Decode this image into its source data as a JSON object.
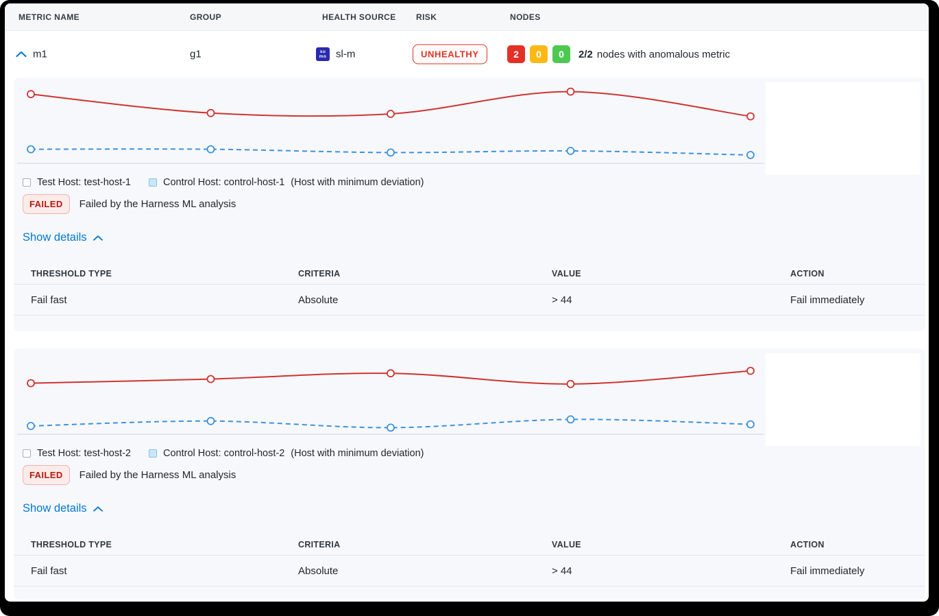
{
  "colors": {
    "accent_blue": "#0278d5",
    "risk_red": "#e13023",
    "node_red": "#e33127",
    "node_yellow": "#fcb915",
    "node_green": "#4dc952",
    "test_line_red": "#ce3430",
    "control_line_blue": "#3d91dc",
    "card_background": "#f7f8fc"
  },
  "header": {
    "columns": [
      "METRIC NAME",
      "GROUP",
      "HEALTH SOURCE",
      "RISK",
      "NODES"
    ]
  },
  "metric_row": {
    "metric_name": "m1",
    "group": "g1",
    "health_source": {
      "icon_text_top": "su",
      "icon_text_bottom": "mo",
      "label": "sl-m"
    },
    "risk_label": "UNHEALTHY",
    "nodes": {
      "unhealthy_count": "2",
      "warning_count": "0",
      "healthy_count": "0",
      "ratio": "2/2",
      "description": "nodes with anomalous metric"
    }
  },
  "sections": [
    {
      "legend": {
        "test": "Test Host: test-host-1",
        "control": "Control Host: control-host-1",
        "note": "(Host with minimum deviation)"
      },
      "analysis": {
        "badge": "FAILED",
        "message": "Failed by the Harness ML analysis"
      },
      "show_details_label": "Show details",
      "details": {
        "columns": [
          "THRESHOLD TYPE",
          "CRITERIA",
          "VALUE",
          "ACTION"
        ],
        "rows": [
          {
            "threshold_type": "Fail fast",
            "criteria": "Absolute",
            "value": "> 44",
            "action": "Fail immediately"
          }
        ]
      }
    },
    {
      "legend": {
        "test": "Test Host: test-host-2",
        "control": "Control Host: control-host-2",
        "note": "(Host with minimum deviation)"
      },
      "analysis": {
        "badge": "FAILED",
        "message": "Failed by the Harness ML analysis"
      },
      "show_details_label": "Show details",
      "details": {
        "columns": [
          "THRESHOLD TYPE",
          "CRITERIA",
          "VALUE",
          "ACTION"
        ],
        "rows": [
          {
            "threshold_type": "Fail fast",
            "criteria": "Absolute",
            "value": "> 44",
            "action": "Fail immediately"
          }
        ]
      }
    }
  ],
  "chart_data": [
    {
      "type": "line",
      "title": "",
      "x": [
        1,
        2,
        3,
        4,
        5
      ],
      "series": [
        {
          "name": "Test Host: test-host-1",
          "color": "#ce3430",
          "line_style": "solid",
          "marker": "circle-open",
          "values": [
            84,
            61,
            60,
            87,
            57
          ]
        },
        {
          "name": "Control Host: control-host-1",
          "color": "#3d91dc",
          "line_style": "dashed",
          "marker": "circle-open",
          "values": [
            17,
            17,
            13,
            15,
            10
          ]
        }
      ],
      "ylim": [
        0,
        100
      ],
      "axes_hidden": true,
      "grid": false,
      "legend_position": "below-chart"
    },
    {
      "type": "line",
      "title": "",
      "x": [
        1,
        2,
        3,
        4,
        5
      ],
      "series": [
        {
          "name": "Test Host: test-host-2",
          "color": "#ce3430",
          "line_style": "solid",
          "marker": "circle-open",
          "values": [
            62,
            67,
            74,
            61,
            77
          ]
        },
        {
          "name": "Control Host: control-host-2",
          "color": "#3d91dc",
          "line_style": "dashed",
          "marker": "circle-open",
          "values": [
            10,
            16,
            8,
            18,
            12
          ]
        }
      ],
      "ylim": [
        0,
        100
      ],
      "axes_hidden": true,
      "grid": false,
      "legend_position": "below-chart"
    }
  ]
}
